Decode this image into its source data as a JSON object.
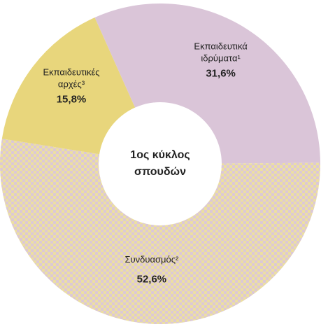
{
  "chart_data": {
    "type": "donut",
    "categories": [
      "Εκπαιδευτικά ιδρύματα¹",
      "Συνδυασμός²",
      "Εκπαιδευτικές αρχές³"
    ],
    "values": [
      31.6,
      52.6,
      15.8
    ],
    "value_labels": [
      "31,6%",
      "52,6%",
      "15,8%"
    ],
    "colors": [
      "#dac5d8",
      "#ecdfa2",
      "#e8d67c"
    ],
    "patterned": [
      false,
      true,
      false
    ],
    "center_text": [
      "1ος κύκλος",
      "σπουδών"
    ]
  }
}
